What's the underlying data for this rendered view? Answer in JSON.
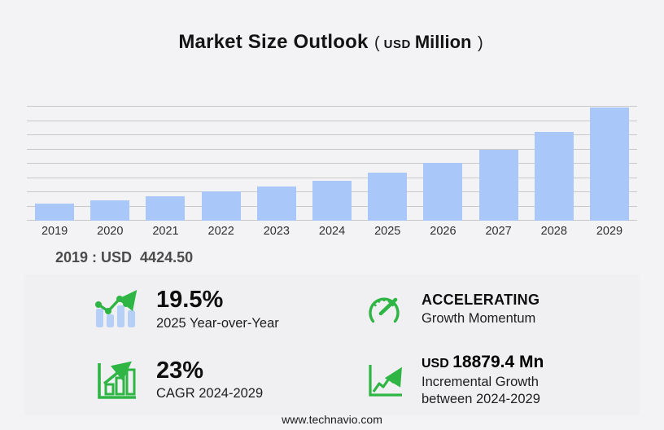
{
  "page": {
    "title": {
      "main": "Market Size Outlook",
      "paren_open": "(",
      "currency": "USD",
      "unit": "Million",
      "paren_close": ")"
    },
    "baseline_label": "2019 : USD  4424.50",
    "footer": "www.technavio.com"
  },
  "chart_data": {
    "type": "bar",
    "title": "Market Size Outlook",
    "subtitle": "( USD Million )",
    "categories": [
      "2019",
      "2020",
      "2021",
      "2022",
      "2023",
      "2024",
      "2025",
      "2026",
      "2027",
      "2028",
      "2029"
    ],
    "values": [
      4424.5,
      5230,
      6240,
      7640,
      8850,
      10399.6,
      12427.5,
      15030,
      18430,
      23080,
      29279
    ],
    "xlabel": "",
    "ylabel": "",
    "ylim": [
      0,
      29500
    ],
    "gridlines": 9,
    "grid": "horizontal",
    "legend": "none",
    "bar_color": "#a9c7f9",
    "gridline_color": "#c9c9c9",
    "annotation": "2019 : USD  4424.50"
  },
  "stats": [
    {
      "icon": "bar-chart-trend-icon",
      "value": "19.5%",
      "label": "2025 Year-over-Year"
    },
    {
      "icon": "speedometer-icon",
      "value": "ACCELERATING",
      "label": "Growth Momentum"
    },
    {
      "icon": "growth-board-icon",
      "value": "23%",
      "label": "CAGR 2024-2029"
    },
    {
      "icon": "line-chart-icon",
      "value_currency": "USD",
      "value": "18879.4 Mn",
      "label_line1": "Incremental Growth",
      "label_line2": "between 2024-2029"
    }
  ],
  "colors": {
    "accent_green": "#2eb544",
    "bar_blue": "#a9c7f9",
    "icon_bar_blue": "#b5cff6"
  }
}
